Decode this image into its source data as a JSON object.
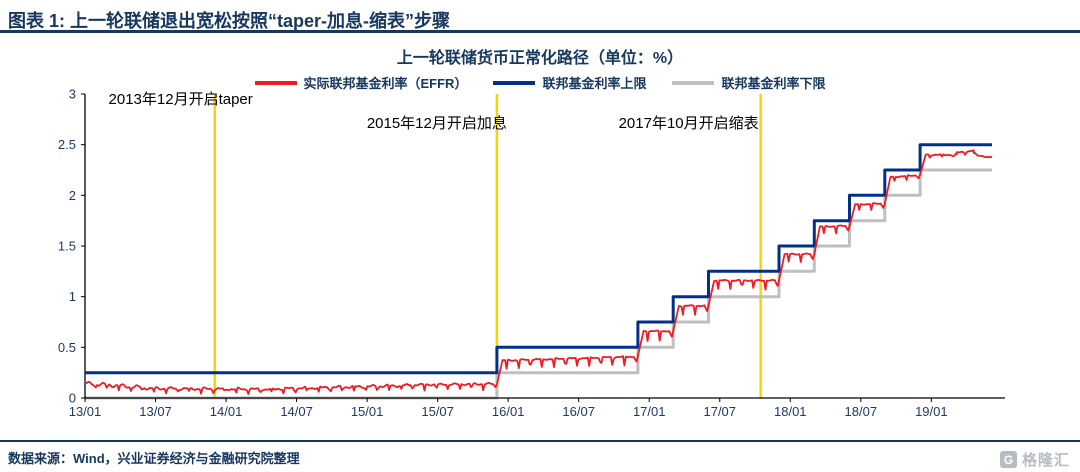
{
  "page": {
    "header_title": "图表 1: 上一轮联储退出宽松按照“taper-加息-缩表”步骤",
    "footer_source": "数据来源：Wind，兴业证券经济与金融研究院整理",
    "watermark": {
      "icon_letter": "G",
      "text": "格隆汇"
    },
    "colors": {
      "navy_text": "#17375E",
      "watermark_gray": "#B7BCC3",
      "annotation_black": "#000000"
    }
  },
  "chart_data": {
    "type": "line",
    "title": "上一轮联储货币正常化路径（单位：%）",
    "xlabel": "",
    "ylabel": "",
    "xlim": [
      2013.0,
      2019.43
    ],
    "ylim": [
      0,
      3
    ],
    "grid": false,
    "legend_position": "top-center",
    "axis_color": "#000000",
    "tick_label_color": "#1F3864",
    "xticks": [
      2013.0,
      2013.5,
      2014.0,
      2014.5,
      2015.0,
      2015.5,
      2016.0,
      2016.5,
      2017.0,
      2017.5,
      2018.0,
      2018.5,
      2019.0
    ],
    "xtick_labels": [
      "13/01",
      "13/07",
      "14/01",
      "14/07",
      "15/01",
      "15/07",
      "16/01",
      "16/07",
      "17/01",
      "17/07",
      "18/01",
      "18/07",
      "19/01"
    ],
    "yticks": [
      0,
      0.5,
      1,
      1.5,
      2,
      2.5,
      3
    ],
    "ytick_labels": [
      "0",
      "0.5",
      "1",
      "1.5",
      "2",
      "2.5",
      "3"
    ],
    "series": [
      {
        "name": "实际联邦基金利率（EFFR）",
        "color": "#ED1C24",
        "type": "jagged_line",
        "segments": [
          {
            "x0": 2013.0,
            "x1": 2013.45,
            "b0": 0.145,
            "b1": 0.1,
            "w": 0.02,
            "dip": 0.05
          },
          {
            "x0": 2013.45,
            "x1": 2014.35,
            "b0": 0.095,
            "b1": 0.085,
            "w": 0.015,
            "dip": 0.045
          },
          {
            "x0": 2014.35,
            "x1": 2015.3,
            "b0": 0.09,
            "b1": 0.125,
            "w": 0.015,
            "dip": 0.05
          },
          {
            "x0": 2015.3,
            "x1": 2015.92,
            "b0": 0.13,
            "b1": 0.14,
            "w": 0.01,
            "dip": 0.06
          },
          {
            "x0": 2015.96,
            "x1": 2016.92,
            "b0": 0.37,
            "b1": 0.41,
            "w": 0.008,
            "dip": 0.1
          },
          {
            "x0": 2016.96,
            "x1": 2017.17,
            "b0": 0.66,
            "b1": 0.66,
            "w": 0.006,
            "dip": 0.11
          },
          {
            "x0": 2017.21,
            "x1": 2017.42,
            "b0": 0.91,
            "b1": 0.91,
            "w": 0.006,
            "dip": 0.1
          },
          {
            "x0": 2017.46,
            "x1": 2017.92,
            "b0": 1.16,
            "b1": 1.16,
            "w": 0.006,
            "dip": 0.1
          },
          {
            "x0": 2017.96,
            "x1": 2018.17,
            "b0": 1.42,
            "b1": 1.42,
            "w": 0.006,
            "dip": 0.09
          },
          {
            "x0": 2018.21,
            "x1": 2018.42,
            "b0": 1.69,
            "b1": 1.7,
            "w": 0.006,
            "dip": 0.08
          },
          {
            "x0": 2018.46,
            "x1": 2018.67,
            "b0": 1.91,
            "b1": 1.92,
            "w": 0.006,
            "dip": 0.07
          },
          {
            "x0": 2018.71,
            "x1": 2018.92,
            "b0": 2.18,
            "b1": 2.2,
            "w": 0.006,
            "dip": 0.05
          },
          {
            "x0": 2018.96,
            "x1": 2019.18,
            "b0": 2.4,
            "b1": 2.4,
            "w": 0.008,
            "dip": 0.03
          },
          {
            "x0": 2019.18,
            "x1": 2019.3,
            "b0": 2.42,
            "b1": 2.44,
            "w": 0.01,
            "dip": 0.02
          },
          {
            "x0": 2019.3,
            "x1": 2019.43,
            "b0": 2.41,
            "b1": 2.37,
            "w": 0.012,
            "dip": 0.02
          }
        ]
      },
      {
        "name": "联邦基金利率上限",
        "color": "#003087",
        "type": "step",
        "steps": [
          [
            2013.0,
            0.25
          ],
          [
            2015.92,
            0.5
          ],
          [
            2016.92,
            0.75
          ],
          [
            2017.17,
            1.0
          ],
          [
            2017.42,
            1.25
          ],
          [
            2017.92,
            1.5
          ],
          [
            2018.17,
            1.75
          ],
          [
            2018.42,
            2.0
          ],
          [
            2018.67,
            2.25
          ],
          [
            2018.92,
            2.5
          ]
        ]
      },
      {
        "name": "联邦基金利率下限",
        "color": "#BFBFBF",
        "type": "step",
        "steps": [
          [
            2013.0,
            0.0
          ],
          [
            2015.92,
            0.25
          ],
          [
            2016.92,
            0.5
          ],
          [
            2017.17,
            0.75
          ],
          [
            2017.42,
            1.0
          ],
          [
            2017.92,
            1.25
          ],
          [
            2018.17,
            1.5
          ],
          [
            2018.42,
            1.75
          ],
          [
            2018.67,
            2.0
          ],
          [
            2018.92,
            2.25
          ]
        ]
      }
    ],
    "event_lines": [
      {
        "x": 2013.92,
        "label": "2013年12月开启taper",
        "color": "#FFD100",
        "label_row": 0,
        "label_dx": 38
      },
      {
        "x": 2015.92,
        "label": "2015年12月开启加息",
        "color": "#FFD100",
        "label_row": 1,
        "label_dx": 10
      },
      {
        "x": 2017.79,
        "label": "2017年10月开启缩表",
        "color": "#FFD100",
        "label_row": 1,
        "label_dx": -2
      }
    ]
  }
}
